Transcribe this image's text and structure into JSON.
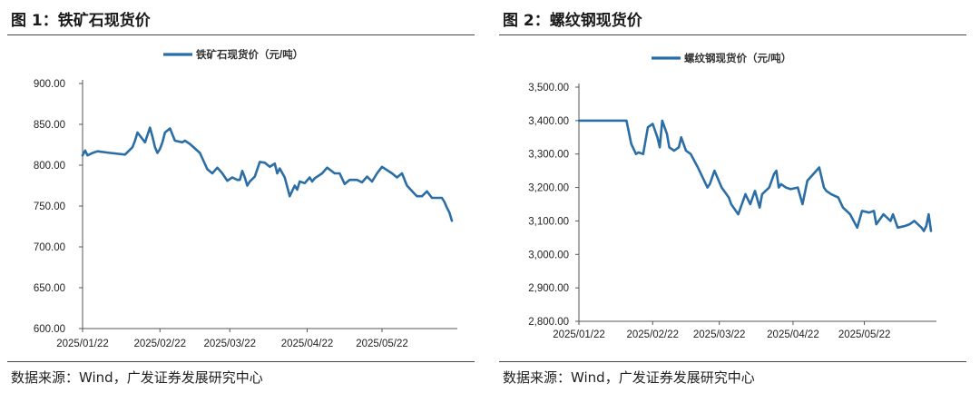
{
  "figures": [
    {
      "title": "图 1：铁矿石现货价",
      "source": "数据来源：Wind，广发证券发展研究中心",
      "chart_data": {
        "type": "line",
        "title": "",
        "xlabel": "",
        "ylabel": "",
        "legend": {
          "label": "铁矿石现货价（元/吨）",
          "position": "top-center"
        },
        "x_ticks": [
          "2025/01/22",
          "2025/02/22",
          "2025/03/22",
          "2025/04/22",
          "2025/05/22"
        ],
        "x_range": [
          "2025-01-22",
          "2025-06-19"
        ],
        "y_ticks": [
          "900.00",
          "850.00",
          "800.00",
          "750.00",
          "700.00",
          "650.00",
          "600.00"
        ],
        "ylim": [
          600,
          900
        ],
        "grid": false,
        "color": "#2b6ea6",
        "series": [
          {
            "name": "铁矿石现货价（元/吨）",
            "x": [
              "2025-01-22",
              "2025-01-23",
              "2025-01-24",
              "2025-01-26",
              "2025-01-28",
              "2025-02-02",
              "2025-02-08",
              "2025-02-11",
              "2025-02-12",
              "2025-02-13",
              "2025-02-16",
              "2025-02-18",
              "2025-02-19",
              "2025-02-20",
              "2025-02-21",
              "2025-02-22",
              "2025-02-23",
              "2025-02-24",
              "2025-02-26",
              "2025-02-28",
              "2025-03-03",
              "2025-03-04",
              "2025-03-06",
              "2025-03-10",
              "2025-03-13",
              "2025-03-15",
              "2025-03-17",
              "2025-03-19",
              "2025-03-21",
              "2025-03-23",
              "2025-03-25",
              "2025-03-26",
              "2025-03-27",
              "2025-03-28",
              "2025-03-29",
              "2025-03-30",
              "2025-04-01",
              "2025-04-03",
              "2025-04-05",
              "2025-04-07",
              "2025-04-08",
              "2025-04-09",
              "2025-04-10",
              "2025-04-11",
              "2025-04-13",
              "2025-04-15",
              "2025-04-17",
              "2025-04-18",
              "2025-04-19",
              "2025-04-21",
              "2025-04-23",
              "2025-04-24",
              "2025-04-25",
              "2025-04-28",
              "2025-04-30",
              "2025-05-03",
              "2025-05-05",
              "2025-05-07",
              "2025-05-09",
              "2025-05-10",
              "2025-05-12",
              "2025-05-14",
              "2025-05-16",
              "2025-05-18",
              "2025-05-20",
              "2025-05-22",
              "2025-05-26",
              "2025-05-28",
              "2025-05-30",
              "2025-06-01",
              "2025-06-04",
              "2025-06-05",
              "2025-06-07",
              "2025-06-09",
              "2025-06-11",
              "2025-06-13",
              "2025-06-15",
              "2025-06-16",
              "2025-06-17",
              "2025-06-18",
              "2025-06-19"
            ],
            "y": [
              812,
              818,
              812,
              815,
              817,
              815,
              813,
              822,
              830,
              840,
              828,
              846,
              835,
              822,
              815,
              820,
              828,
              840,
              845,
              830,
              828,
              830,
              826,
              815,
              795,
              790,
              797,
              790,
              781,
              785,
              782,
              782,
              793,
              785,
              775,
              780,
              786,
              804,
              803,
              798,
              800,
              802,
              790,
              796,
              785,
              762,
              775,
              770,
              780,
              778,
              785,
              780,
              784,
              790,
              797,
              790,
              790,
              777,
              782,
              782,
              782,
              779,
              786,
              780,
              790,
              798,
              790,
              785,
              790,
              775,
              765,
              762,
              762,
              768,
              760,
              760,
              760,
              755,
              748,
              742,
              732
            ]
          }
        ]
      }
    },
    {
      "title": "图 2：螺纹钢现货价",
      "source": "数据来源：Wind，广发证券发展研究中心",
      "chart_data": {
        "type": "line",
        "title": "",
        "xlabel": "",
        "ylabel": "",
        "legend": {
          "label": "螺纹钢现货价（元/吨）",
          "position": "top-center"
        },
        "x_ticks": [
          "2025/01/22",
          "2025/02/22",
          "2025/03/22",
          "2025/04/22",
          "2025/05/22"
        ],
        "x_range": [
          "2025-01-22",
          "2025-06-19"
        ],
        "y_ticks": [
          "3,500.00",
          "3,400.00",
          "3,300.00",
          "3,200.00",
          "3,100.00",
          "3,000.00",
          "2,900.00",
          "2,800.00"
        ],
        "ylim": [
          2800,
          3500
        ],
        "grid": false,
        "color": "#2b6ea6",
        "series": [
          {
            "name": "螺纹钢现货价（元/吨）",
            "x": [
              "2025-01-22",
              "2025-02-11",
              "2025-02-13",
              "2025-02-15",
              "2025-02-16",
              "2025-02-18",
              "2025-02-20",
              "2025-02-22",
              "2025-02-24",
              "2025-02-25",
              "2025-02-26",
              "2025-02-28",
              "2025-03-01",
              "2025-03-03",
              "2025-03-05",
              "2025-03-06",
              "2025-03-08",
              "2025-03-10",
              "2025-03-13",
              "2025-03-17",
              "2025-03-18",
              "2025-03-20",
              "2025-03-23",
              "2025-03-26",
              "2025-03-27",
              "2025-03-30",
              "2025-04-02",
              "2025-04-04",
              "2025-04-06",
              "2025-04-08",
              "2025-04-09",
              "2025-04-12",
              "2025-04-14",
              "2025-04-15",
              "2025-04-16",
              "2025-04-17",
              "2025-04-19",
              "2025-04-21",
              "2025-04-24",
              "2025-04-26",
              "2025-04-28",
              "2025-05-03",
              "2025-05-05",
              "2025-05-06",
              "2025-05-08",
              "2025-05-11",
              "2025-05-13",
              "2025-05-16",
              "2025-05-19",
              "2025-05-21",
              "2025-05-24",
              "2025-05-26",
              "2025-05-27",
              "2025-05-30",
              "2025-06-02",
              "2025-06-03",
              "2025-06-05",
              "2025-06-08",
              "2025-06-10",
              "2025-06-12",
              "2025-06-15",
              "2025-06-16",
              "2025-06-17",
              "2025-06-18",
              "2025-06-19"
            ],
            "y": [
              3400,
              3400,
              3330,
              3300,
              3305,
              3300,
              3380,
              3390,
              3350,
              3320,
              3400,
              3360,
              3320,
              3310,
              3320,
              3350,
              3310,
              3300,
              3260,
              3200,
              3210,
              3250,
              3200,
              3170,
              3150,
              3120,
              3180,
              3150,
              3190,
              3140,
              3180,
              3200,
              3240,
              3250,
              3200,
              3210,
              3200,
              3195,
              3200,
              3150,
              3220,
              3260,
              3200,
              3190,
              3180,
              3170,
              3140,
              3120,
              3080,
              3130,
              3125,
              3130,
              3090,
              3120,
              3100,
              3120,
              3080,
              3085,
              3090,
              3100,
              3080,
              3070,
              3085,
              3120,
              3070
            ]
          }
        ]
      }
    }
  ]
}
